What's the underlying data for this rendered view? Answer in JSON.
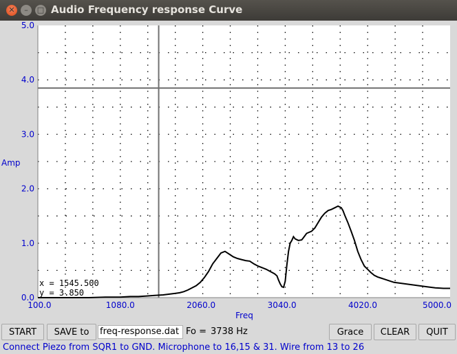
{
  "window": {
    "title": "Audio Frequency response Curve",
    "close_glyph": "✕",
    "min_glyph": "–",
    "max_glyph": "□"
  },
  "chart_data": {
    "type": "line",
    "xlabel": "Freq",
    "ylabel": "Amp",
    "xlim": [
      80,
      5080
    ],
    "ylim": [
      0,
      5
    ],
    "x_ticks": [
      "100.0",
      "1080.0",
      "2060.0",
      "3040.0",
      "4020.0",
      "5000.0"
    ],
    "y_ticks": [
      "0.0",
      "1.0",
      "2.0",
      "3.0",
      "4.0",
      "5.0"
    ],
    "cursor_x": 1545.5,
    "cursor_y": 3.85,
    "cursor_labels": [
      "x = 1545.500",
      "y = 3.850"
    ],
    "colors": {
      "axis_text": "#0000cc",
      "trace": "#000000",
      "background": "#ffffff"
    },
    "grid": true,
    "series": [
      {
        "x": [
          80,
          300,
          500,
          700,
          900,
          1080,
          1200,
          1300,
          1400,
          1500,
          1600,
          1700,
          1750,
          1800,
          1850,
          1900,
          1950,
          2000,
          2050,
          2100,
          2150,
          2200,
          2250,
          2300,
          2350,
          2400,
          2450,
          2500,
          2550,
          2600,
          2650,
          2700,
          2750,
          2800,
          2850,
          2900,
          2950,
          2980,
          3000,
          3020,
          3040,
          3060,
          3080,
          3100,
          3120,
          3140,
          3160,
          3180,
          3200,
          3240,
          3280,
          3300,
          3340,
          3400,
          3440,
          3480,
          3520,
          3560,
          3600,
          3640,
          3680,
          3720,
          3760,
          3780,
          3800,
          3840,
          3880,
          3920,
          3960,
          4000,
          4040,
          4080,
          4120,
          4160,
          4200,
          4240,
          4280,
          4340,
          4400,
          4500,
          4600,
          4700,
          4800,
          4900,
          5000,
          5080
        ],
        "y": [
          0.0,
          0.0,
          0.0,
          0.0,
          0.01,
          0.01,
          0.02,
          0.02,
          0.03,
          0.04,
          0.05,
          0.07,
          0.08,
          0.09,
          0.11,
          0.14,
          0.18,
          0.22,
          0.28,
          0.37,
          0.48,
          0.62,
          0.72,
          0.82,
          0.85,
          0.8,
          0.75,
          0.72,
          0.7,
          0.68,
          0.67,
          0.62,
          0.58,
          0.55,
          0.52,
          0.48,
          0.44,
          0.4,
          0.32,
          0.25,
          0.2,
          0.19,
          0.3,
          0.6,
          0.85,
          1.0,
          1.05,
          1.12,
          1.08,
          1.05,
          1.06,
          1.1,
          1.18,
          1.22,
          1.28,
          1.38,
          1.48,
          1.55,
          1.6,
          1.62,
          1.65,
          1.68,
          1.65,
          1.6,
          1.52,
          1.38,
          1.22,
          1.05,
          0.85,
          0.7,
          0.58,
          0.52,
          0.46,
          0.41,
          0.38,
          0.36,
          0.34,
          0.31,
          0.28,
          0.26,
          0.24,
          0.22,
          0.2,
          0.18,
          0.17,
          0.17
        ]
      }
    ]
  },
  "controls": {
    "start": "START",
    "save": "SAVE to",
    "filename": "freq-response.dat",
    "fo_label": "Fo =",
    "fo_value": "3738 Hz",
    "grace": "Grace",
    "clear": "CLEAR",
    "quit": "QUIT"
  },
  "status": "Connect Piezo from SQR1 to GND. Microphone to 16,15 & 31. Wire from 13 to 26"
}
